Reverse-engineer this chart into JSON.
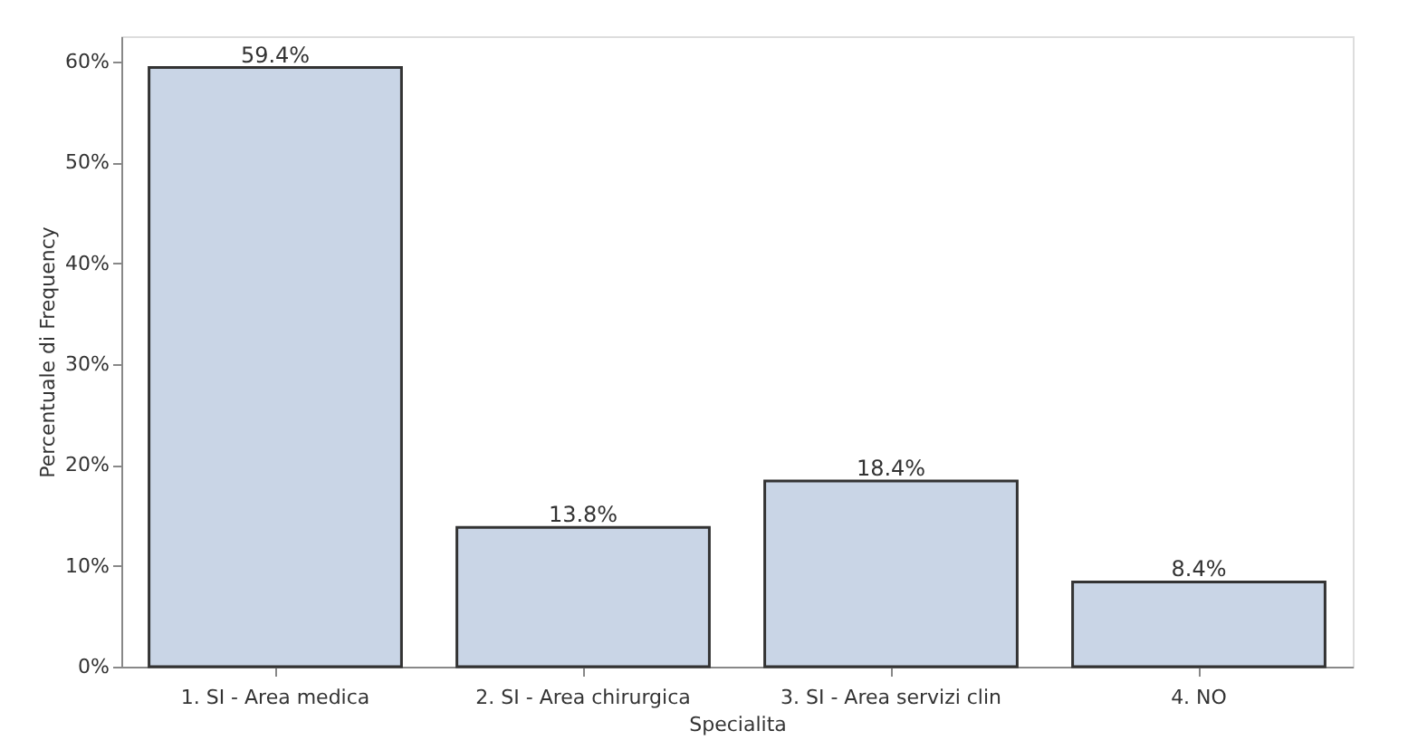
{
  "chart_data": {
    "type": "bar",
    "categories": [
      "1. SI - Area medica",
      "2. SI - Area chirurgica",
      "3. SI - Area servizi clin",
      "4. NO"
    ],
    "values": [
      59.4,
      13.8,
      18.4,
      8.4
    ],
    "value_labels": [
      "59.4%",
      "13.8%",
      "18.4%",
      "8.4%"
    ],
    "color": "#c9d5e6",
    "xlabel": "Specialita",
    "ylabel": "Percentuale di Frequency",
    "ylim": [
      0,
      62.5
    ],
    "yticks": [
      {
        "value": 0,
        "label": "0%"
      },
      {
        "value": 10,
        "label": "10%"
      },
      {
        "value": 20,
        "label": "20%"
      },
      {
        "value": 30,
        "label": "30%"
      },
      {
        "value": 40,
        "label": "40%"
      },
      {
        "value": 50,
        "label": "50%"
      },
      {
        "value": 60,
        "label": "60%"
      }
    ],
    "grid": false
  }
}
